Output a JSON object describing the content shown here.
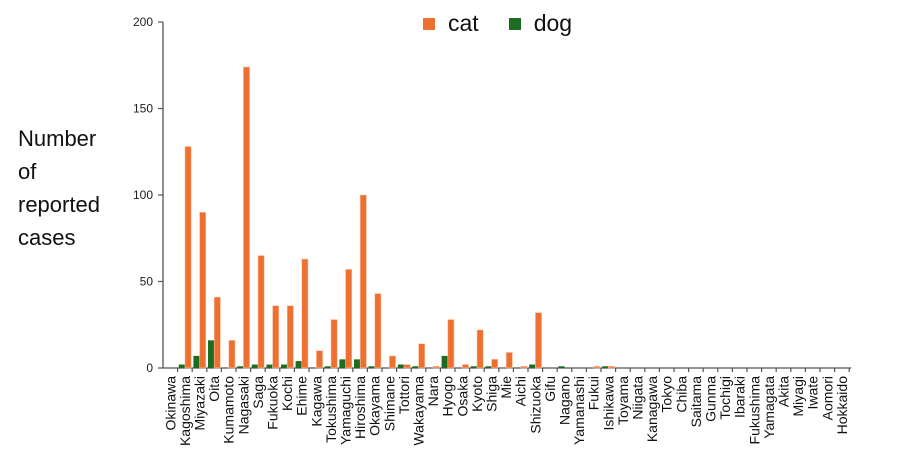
{
  "chart_data": {
    "type": "bar",
    "title": "",
    "xlabel": "",
    "ylabel_lines": [
      "Number",
      "of",
      "reported",
      "cases"
    ],
    "ylim": [
      0,
      200
    ],
    "yticks": [
      0,
      50,
      100,
      150,
      200
    ],
    "grid": false,
    "legend_placement": "top",
    "categories": [
      "Okinawa",
      "Kagoshima",
      "Miyazaki",
      "Oita",
      "Kumamoto",
      "Nagasaki",
      "Saga",
      "Fukuoka",
      "Kochi",
      "Ehime",
      "Kagawa",
      "Tokushima",
      "Yamaguchi",
      "Hiroshima",
      "Okayama",
      "Shimane",
      "Tottori",
      "Wakayama",
      "Nara",
      "Hyogo",
      "Osaka",
      "Kyoto",
      "Shiga",
      "Mie",
      "Aichi",
      "Shizuoka",
      "Gifu",
      "Nagano",
      "Yamanashi",
      "Fukui",
      "Ishikawa",
      "Toyama",
      "Niigata",
      "Kanagawa",
      "Tokyo",
      "Chiba",
      "Saitama",
      "Gunma",
      "Tochigi",
      "Ibaraki",
      "Fukushima",
      "Yamagata",
      "Akita",
      "Miyagi",
      "Iwate",
      "Aomori",
      "Hokkaido"
    ],
    "series": [
      {
        "name": "cat",
        "color": "#ED7031",
        "values": [
          0,
          128,
          90,
          41,
          16,
          174,
          65,
          36,
          36,
          63,
          10,
          28,
          57,
          100,
          43,
          7,
          2,
          14,
          1,
          28,
          2,
          22,
          5,
          9,
          1,
          32,
          0,
          0,
          0,
          1,
          1,
          0,
          0,
          0,
          0,
          0,
          0,
          0,
          0,
          0,
          0,
          0,
          0,
          0,
          0,
          0,
          0
        ]
      },
      {
        "name": "dog",
        "color": "#1E6B22",
        "values": [
          0,
          2,
          7,
          16,
          0,
          1,
          2,
          2,
          2,
          4,
          0,
          1,
          5,
          5,
          1,
          0,
          2,
          1,
          0,
          7,
          0,
          1,
          1,
          0,
          0,
          2,
          0,
          1,
          0,
          0,
          1,
          0,
          0,
          0,
          0,
          0,
          0,
          0,
          0,
          0,
          0,
          0,
          0,
          0,
          0,
          0,
          0
        ]
      }
    ]
  }
}
